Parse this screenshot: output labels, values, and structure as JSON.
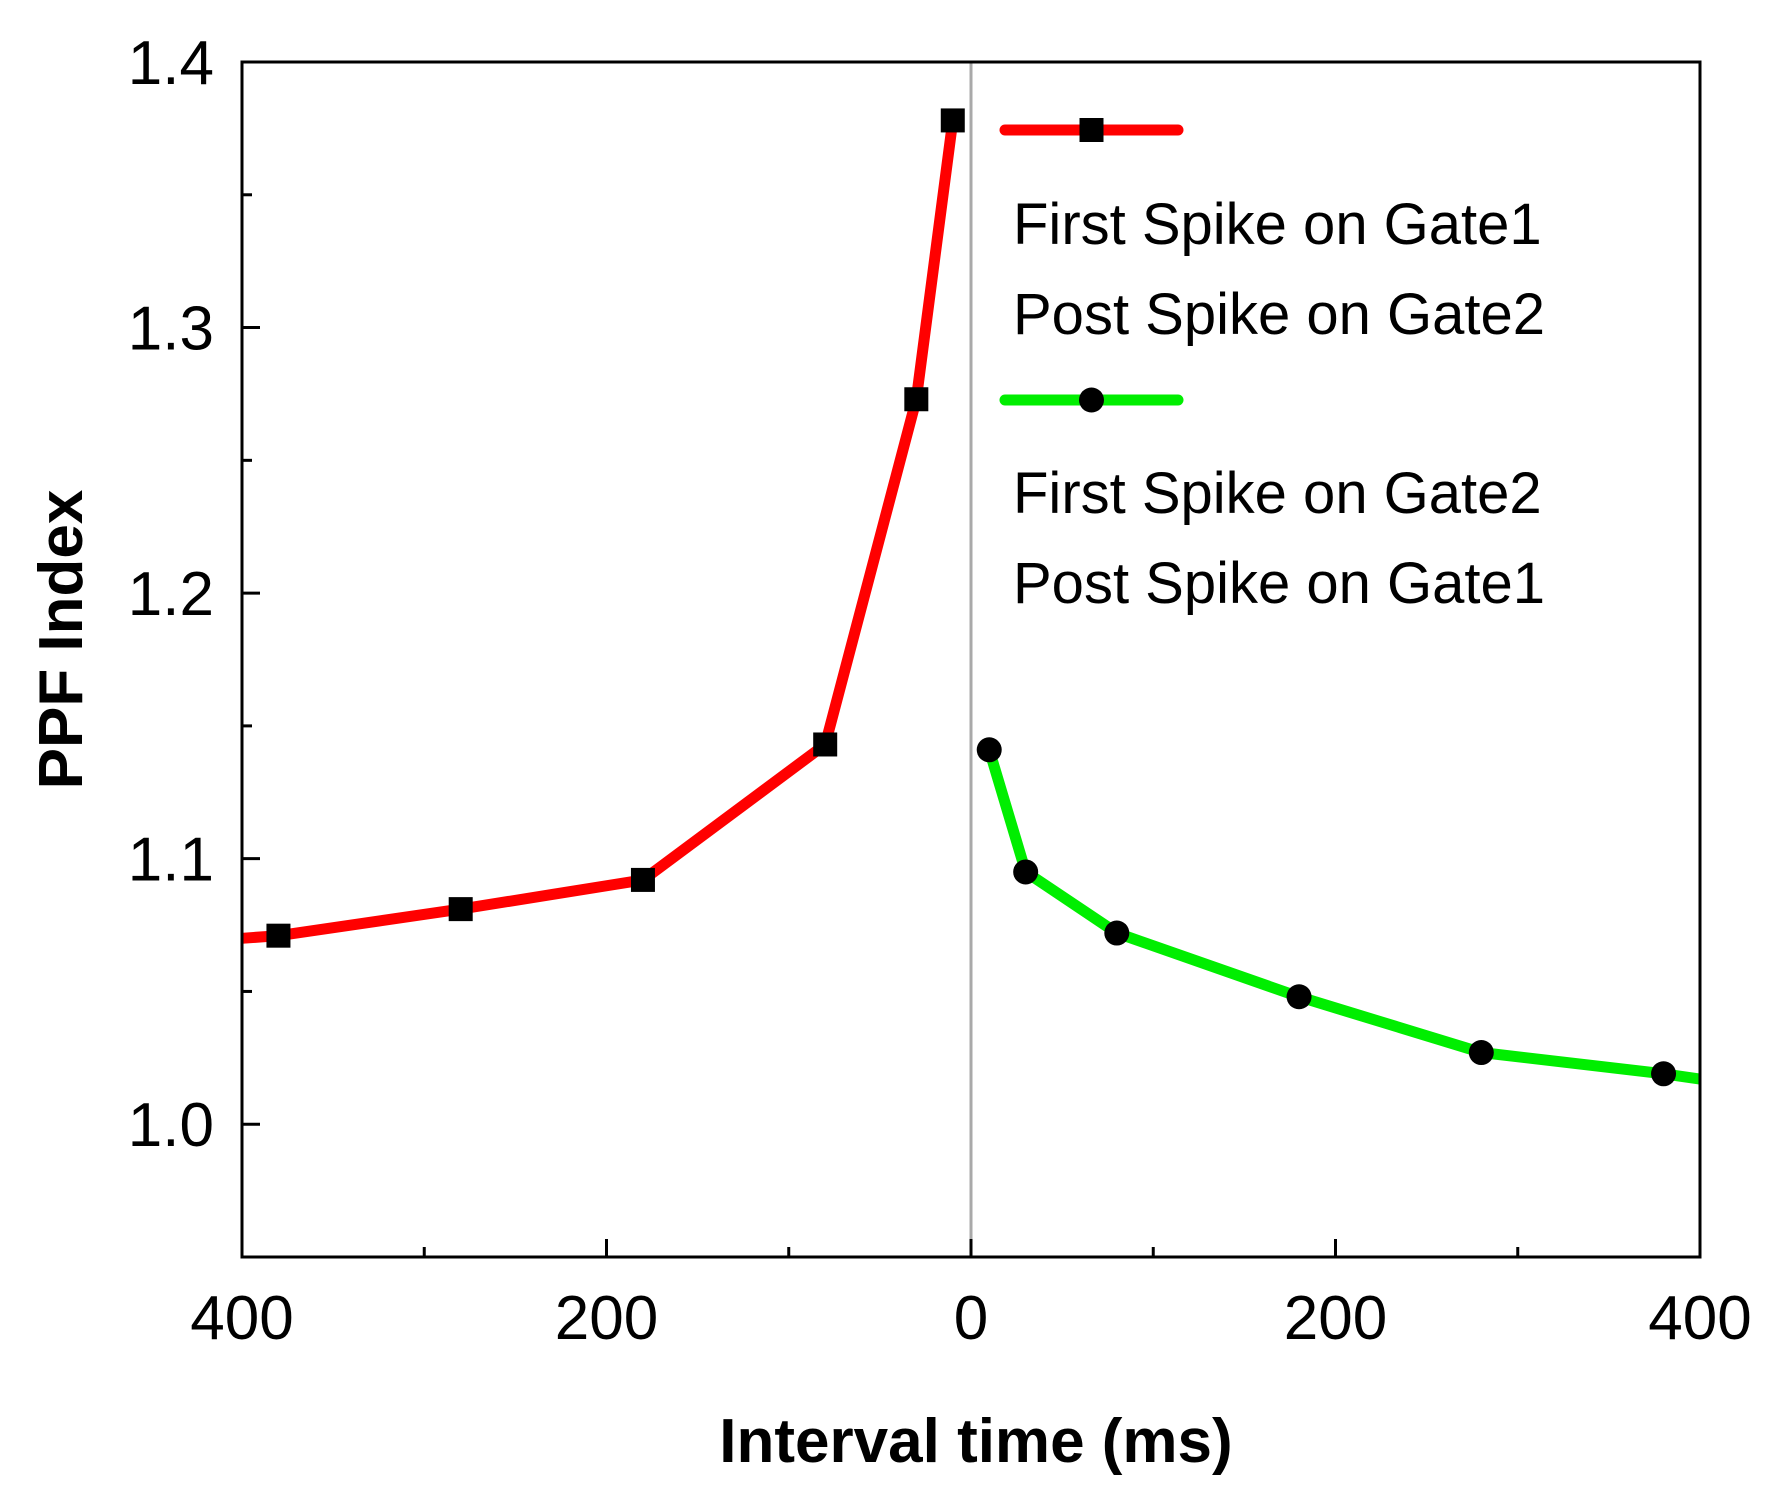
{
  "chart_data": {
    "type": "line",
    "title": "",
    "xlabel": "Interval time (ms)",
    "ylabel": "PPF Index",
    "xlim": [
      -400,
      400
    ],
    "ylim": [
      0.95,
      1.4
    ],
    "x_ticks": [
      -400,
      -200,
      0,
      200,
      400
    ],
    "x_tick_labels": [
      "400",
      "200",
      "0",
      "200",
      "400"
    ],
    "x_minor_ticks": [
      -300,
      -100,
      100,
      300
    ],
    "y_ticks": [
      1.0,
      1.1,
      1.2,
      1.3,
      1.4
    ],
    "y_tick_labels": [
      "1.0",
      "1.1",
      "1.2",
      "1.3",
      "1.4"
    ],
    "y_minor_ticks": [
      1.05,
      1.15,
      1.25,
      1.35
    ],
    "zero_line": true,
    "grid": false,
    "legend_position": "top-right",
    "series": [
      {
        "name": "First Spike on Gate1 Post Spike on Gate2",
        "legend_lines": [
          "First Spike on Gate1",
          "Post Spike on Gate2"
        ],
        "color": "#ff0000",
        "marker": "square",
        "x": [
          -380,
          -280,
          -180,
          -80,
          -30,
          -10
        ],
        "y": [
          1.071,
          1.081,
          1.092,
          1.143,
          1.273,
          1.378
        ],
        "line_extends_to_axis": -400,
        "y_at_axis": 1.07
      },
      {
        "name": "First Spike on Gate2 Post Spike on Gate1",
        "legend_lines": [
          "First Spike on Gate2",
          "Post Spike on Gate1"
        ],
        "color": "#00ee00",
        "marker": "circle",
        "x": [
          10,
          30,
          80,
          180,
          280,
          380
        ],
        "y": [
          1.141,
          1.095,
          1.072,
          1.048,
          1.027,
          1.019
        ],
        "line_extends_to_axis": 400,
        "y_at_axis": 1.017
      }
    ]
  }
}
